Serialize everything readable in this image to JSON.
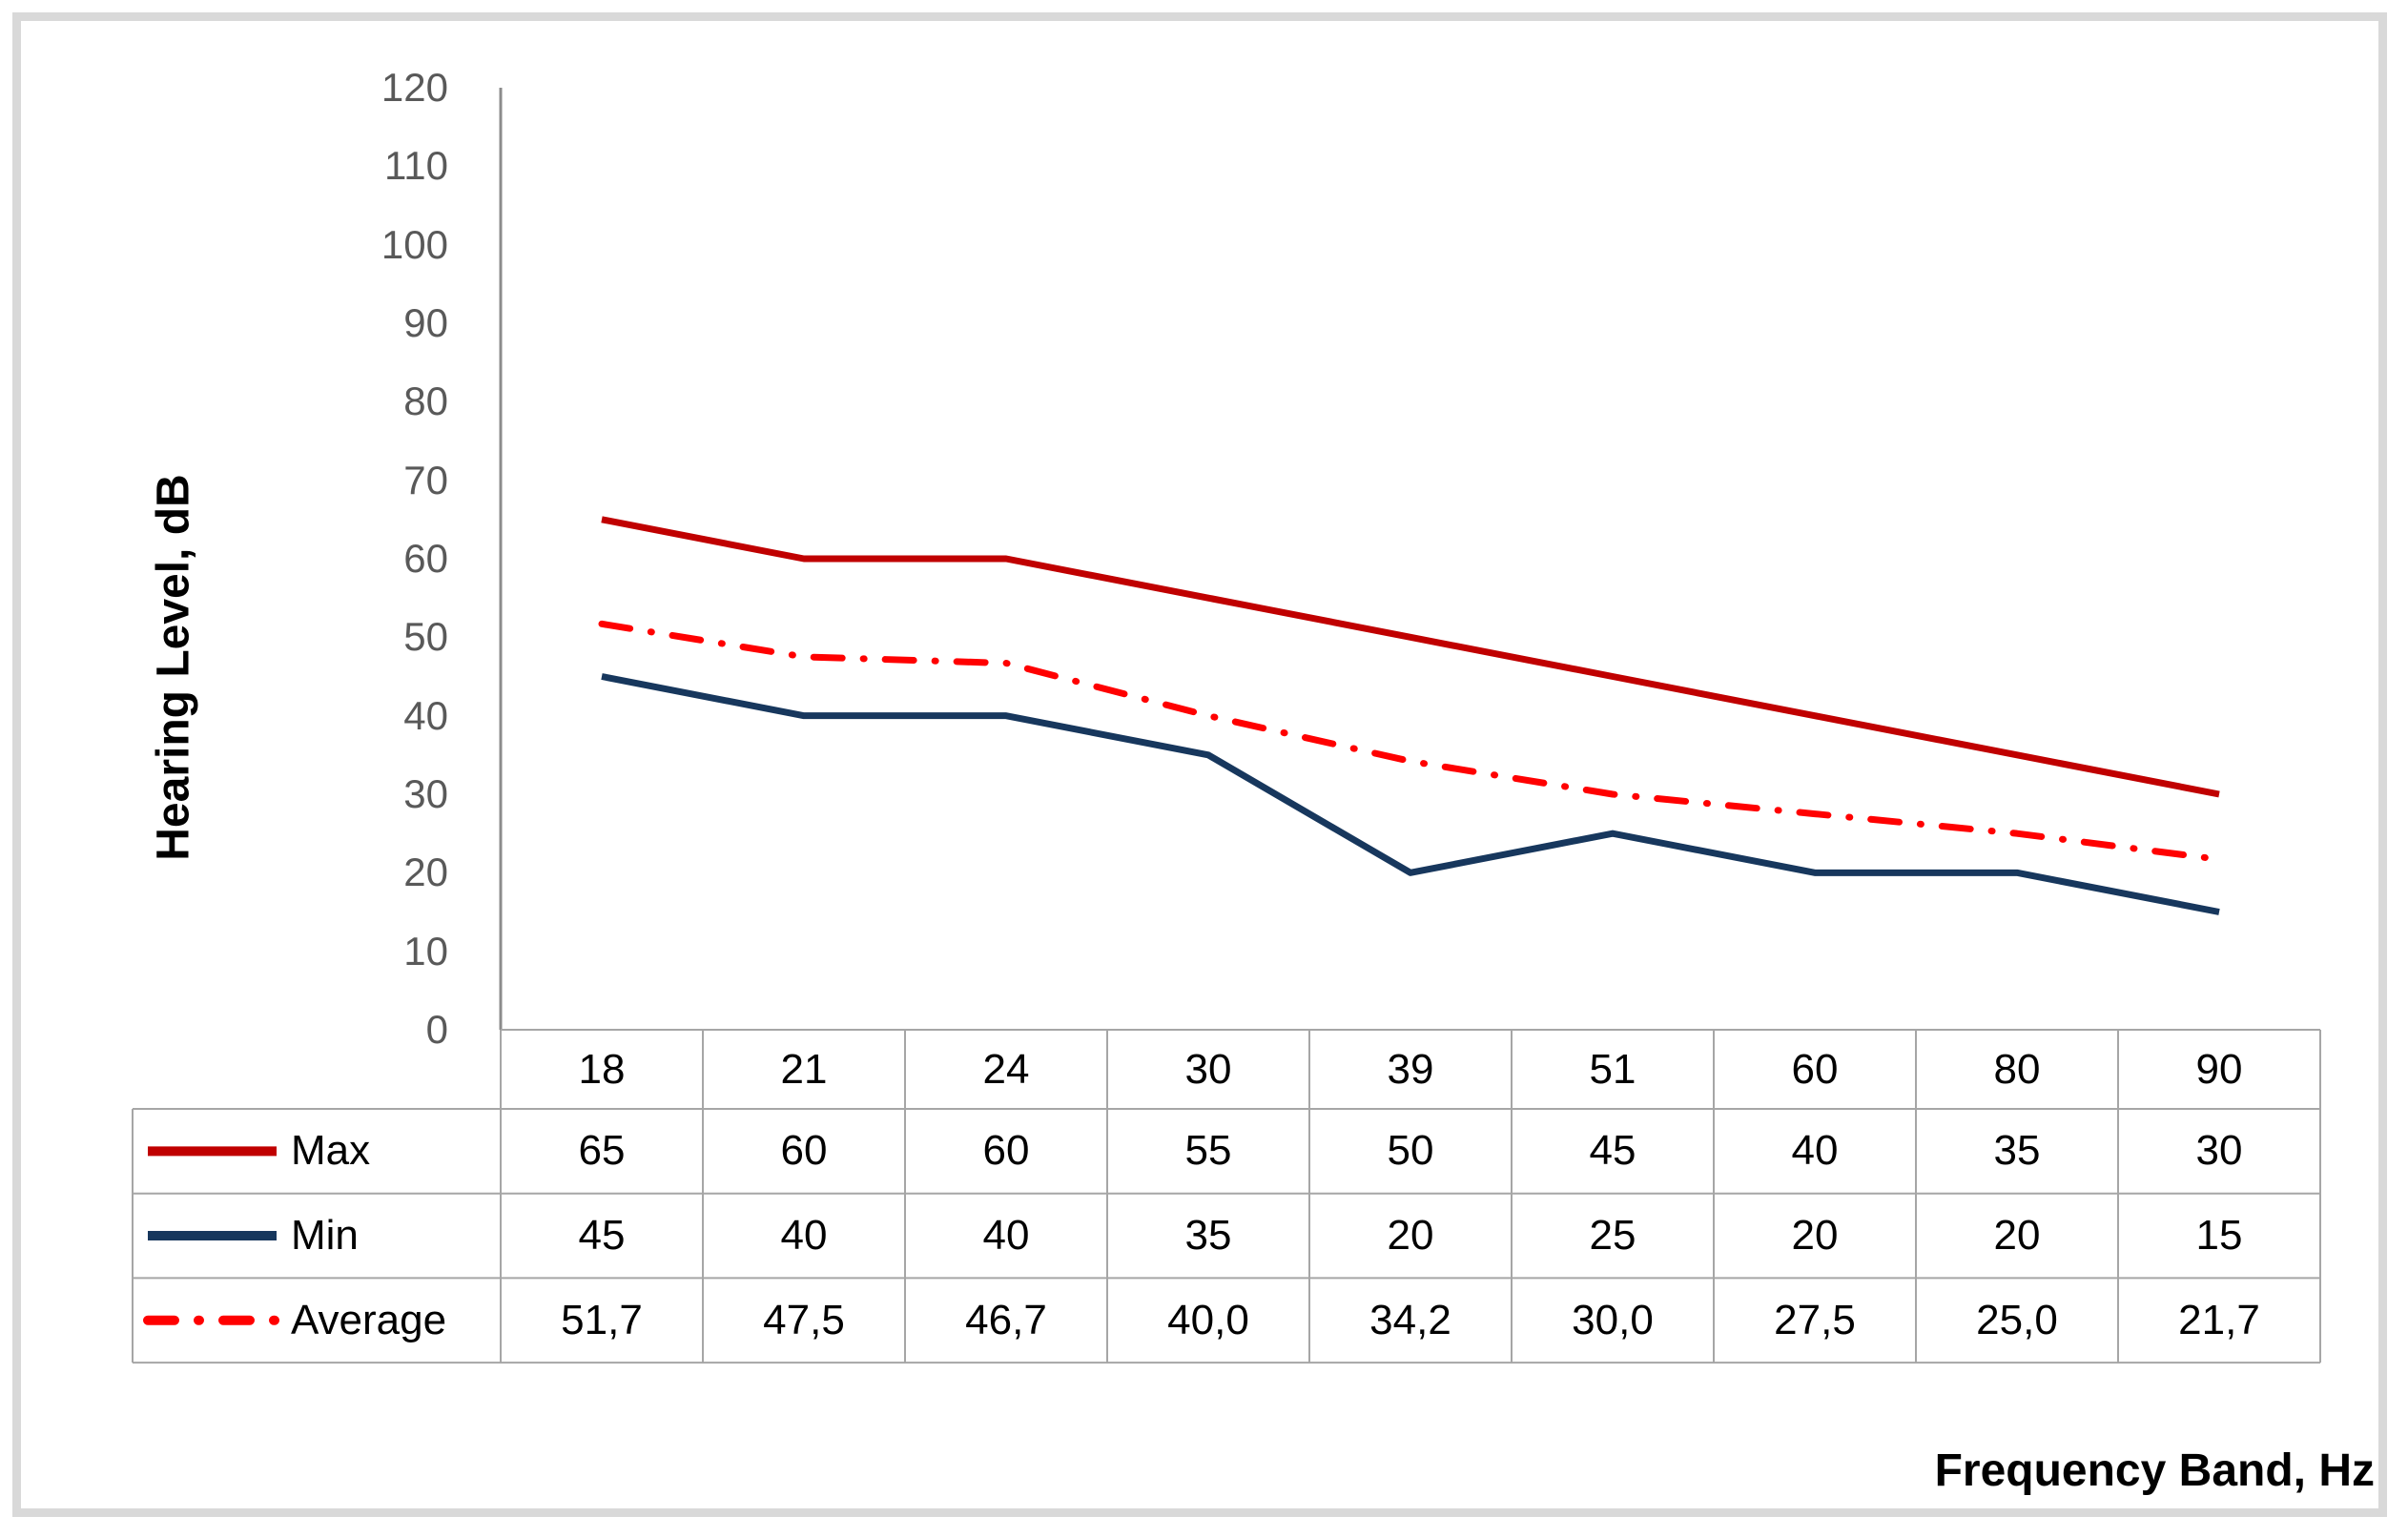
{
  "chart_data": {
    "type": "line",
    "title": "",
    "xlabel": "Frequency Band, Hz",
    "ylabel": "Hearing Level, dB",
    "categories": [
      "18",
      "21",
      "24",
      "30",
      "39",
      "51",
      "60",
      "80",
      "90"
    ],
    "series": [
      {
        "name": "Max",
        "color": "#C00000",
        "line_style": "solid",
        "values": [
          65,
          60,
          60,
          55,
          50,
          45,
          40,
          35,
          30
        ],
        "display": [
          "65",
          "60",
          "60",
          "55",
          "50",
          "45",
          "40",
          "35",
          "30"
        ]
      },
      {
        "name": "Min",
        "color": "#17375D",
        "line_style": "solid",
        "values": [
          45,
          40,
          40,
          35,
          20,
          25,
          20,
          20,
          15
        ],
        "display": [
          "45",
          "40",
          "40",
          "35",
          "20",
          "25",
          "20",
          "20",
          "15"
        ]
      },
      {
        "name": "Average",
        "color": "#FF0000",
        "line_style": "dash-dot",
        "values": [
          51.7,
          47.5,
          46.7,
          40.0,
          34.2,
          30.0,
          27.5,
          25.0,
          21.7
        ],
        "display": [
          "51,7",
          "47,5",
          "46,7",
          "40,0",
          "34,2",
          "30,0",
          "27,5",
          "25,0",
          "21,7"
        ]
      }
    ],
    "ylim": [
      0,
      120
    ],
    "ytick_step": 10,
    "ytick_labels": [
      "0",
      "10",
      "20",
      "30",
      "40",
      "50",
      "60",
      "70",
      "80",
      "90",
      "100",
      "110",
      "120"
    ],
    "grid": false,
    "legend_position": "data-table-left"
  },
  "colors": {
    "axis_line": "#8C8C8C",
    "table_border": "#A6A6A6",
    "tick_text": "#595959",
    "table_text": "#000000",
    "frame_border": "#D9D9D9",
    "background": "#FFFFFF"
  }
}
